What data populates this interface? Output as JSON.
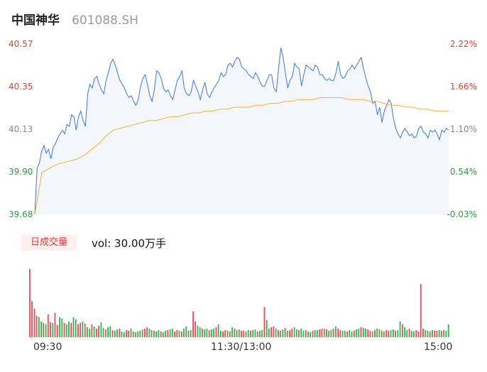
{
  "header": {
    "name": "中国神华",
    "code": "601088.SH"
  },
  "chart_data": {
    "type": "line",
    "price_ticks": [
      "40.57",
      "40.35",
      "40.13",
      "39.90",
      "39.68"
    ],
    "pct_ticks": [
      "2.22%",
      "1.66%",
      "1.10%",
      "0.54%",
      "-0.03%"
    ],
    "ylim": [
      39.68,
      40.57
    ],
    "time_labels": [
      "09:30",
      "11:30/13:00",
      "15:00"
    ],
    "series": [
      {
        "role": "price",
        "values": [
          39.68,
          39.92,
          39.95,
          40.01,
          40.04,
          40.0,
          40.02,
          39.97,
          40.03,
          40.05,
          40.08,
          40.1,
          40.12,
          40.1,
          40.15,
          40.14,
          40.2,
          40.19,
          40.12,
          40.19,
          40.22,
          40.17,
          40.14,
          40.31,
          40.36,
          40.34,
          40.39,
          40.4,
          40.36,
          40.33,
          40.31,
          40.38,
          40.42,
          40.47,
          40.49,
          40.46,
          40.42,
          40.38,
          40.36,
          40.34,
          40.31,
          40.29,
          40.3,
          40.27,
          40.25,
          40.28,
          40.35,
          40.39,
          40.41,
          40.36,
          40.3,
          40.27,
          40.33,
          40.43,
          40.42,
          40.39,
          40.34,
          40.32,
          40.33,
          40.3,
          40.28,
          40.33,
          40.38,
          40.4,
          40.43,
          40.34,
          40.31,
          40.3,
          40.32,
          40.38,
          40.35,
          40.32,
          40.28,
          40.33,
          40.37,
          40.31,
          40.29,
          40.32,
          40.34,
          40.36,
          40.38,
          40.42,
          40.4,
          40.41,
          40.46,
          40.47,
          40.45,
          40.48,
          40.5,
          40.49,
          40.45,
          40.44,
          40.43,
          40.41,
          40.4,
          40.39,
          40.42,
          40.4,
          40.37,
          40.35,
          40.35,
          40.38,
          40.41,
          40.41,
          40.34,
          40.32,
          40.44,
          40.55,
          40.5,
          40.42,
          40.34,
          40.38,
          40.4,
          40.47,
          40.45,
          40.44,
          40.35,
          40.41,
          40.46,
          40.45,
          40.44,
          40.43,
          40.46,
          40.45,
          40.41,
          40.41,
          40.39,
          40.38,
          40.39,
          40.38,
          40.38,
          40.42,
          40.48,
          40.41,
          40.39,
          40.4,
          40.43,
          40.44,
          40.46,
          40.44,
          40.46,
          40.48,
          40.5,
          40.44,
          40.39,
          40.35,
          40.32,
          40.26,
          40.27,
          40.2,
          40.24,
          40.16,
          40.22,
          40.25,
          40.28,
          40.26,
          40.18,
          40.13,
          40.1,
          40.08,
          40.11,
          40.13,
          40.11,
          40.09,
          40.1,
          40.08,
          40.09,
          40.13,
          40.14,
          40.11,
          40.1,
          40.08,
          40.12,
          40.11,
          40.12,
          40.1,
          40.07,
          40.12,
          40.11,
          40.13,
          40.12
        ]
      },
      {
        "role": "average",
        "values": [
          39.68,
          39.9,
          39.92,
          39.94,
          39.95,
          39.96,
          39.97,
          39.99,
          40.02,
          40.05,
          40.09,
          40.12,
          40.13,
          40.14,
          40.15,
          40.16,
          40.17,
          40.17,
          40.18,
          40.19,
          40.19,
          40.2,
          40.21,
          40.21,
          40.22,
          40.22,
          40.23,
          40.23,
          40.24,
          40.24,
          40.24,
          40.25,
          40.25,
          40.26,
          40.26,
          40.27,
          40.27,
          40.28,
          40.28,
          40.28,
          40.29,
          40.29,
          40.29,
          40.29,
          40.28,
          40.28,
          40.28,
          40.27,
          40.27,
          40.26,
          40.25,
          40.25,
          40.24,
          40.24,
          40.23,
          40.23,
          40.22,
          40.22,
          40.22
        ]
      }
    ],
    "volume": {
      "values": [
        95,
        50,
        40,
        30,
        28,
        22,
        20,
        18,
        32,
        21,
        20,
        34,
        17,
        28,
        26,
        20,
        18,
        22,
        20,
        28,
        25,
        18,
        20,
        22,
        19,
        14,
        12,
        18,
        15,
        12,
        16,
        21,
        13,
        11,
        14,
        15,
        10,
        9,
        11,
        12,
        8,
        7,
        10,
        9,
        12,
        8,
        7,
        8,
        9,
        11,
        12,
        14,
        12,
        10,
        9,
        8,
        10,
        8,
        7,
        9,
        10,
        11,
        12,
        8,
        10,
        9,
        8,
        12,
        15,
        9,
        10,
        36,
        22,
        16,
        14,
        12,
        11,
        12,
        10,
        11,
        12,
        14,
        18,
        9,
        8,
        10,
        9,
        8,
        14,
        12,
        10,
        11,
        9,
        9,
        8,
        10,
        9,
        10,
        11,
        8,
        9,
        10,
        42,
        24,
        12,
        14,
        15,
        12,
        10,
        9,
        11,
        13,
        9,
        10,
        12,
        14,
        11,
        10,
        12,
        9,
        10,
        8,
        7,
        9,
        10,
        10,
        11,
        12,
        12,
        11,
        9,
        10,
        12,
        15,
        12,
        10,
        9,
        9,
        8,
        10,
        8,
        9,
        11,
        12,
        14,
        13,
        12,
        11,
        9,
        8,
        10,
        12,
        11,
        9,
        8,
        10,
        9,
        10,
        11,
        9,
        10,
        22,
        18,
        14,
        10,
        12,
        9,
        8,
        10,
        8,
        74,
        12,
        10,
        9,
        8,
        10,
        9,
        9,
        10,
        9,
        10,
        9,
        18
      ],
      "label": "日成交量",
      "text": "vol: 30.00万手"
    },
    "colors": {
      "up": "#f24957",
      "down": "#2db84d",
      "price_line": "#3c78d8",
      "avg_line": "#f2b233"
    }
  }
}
